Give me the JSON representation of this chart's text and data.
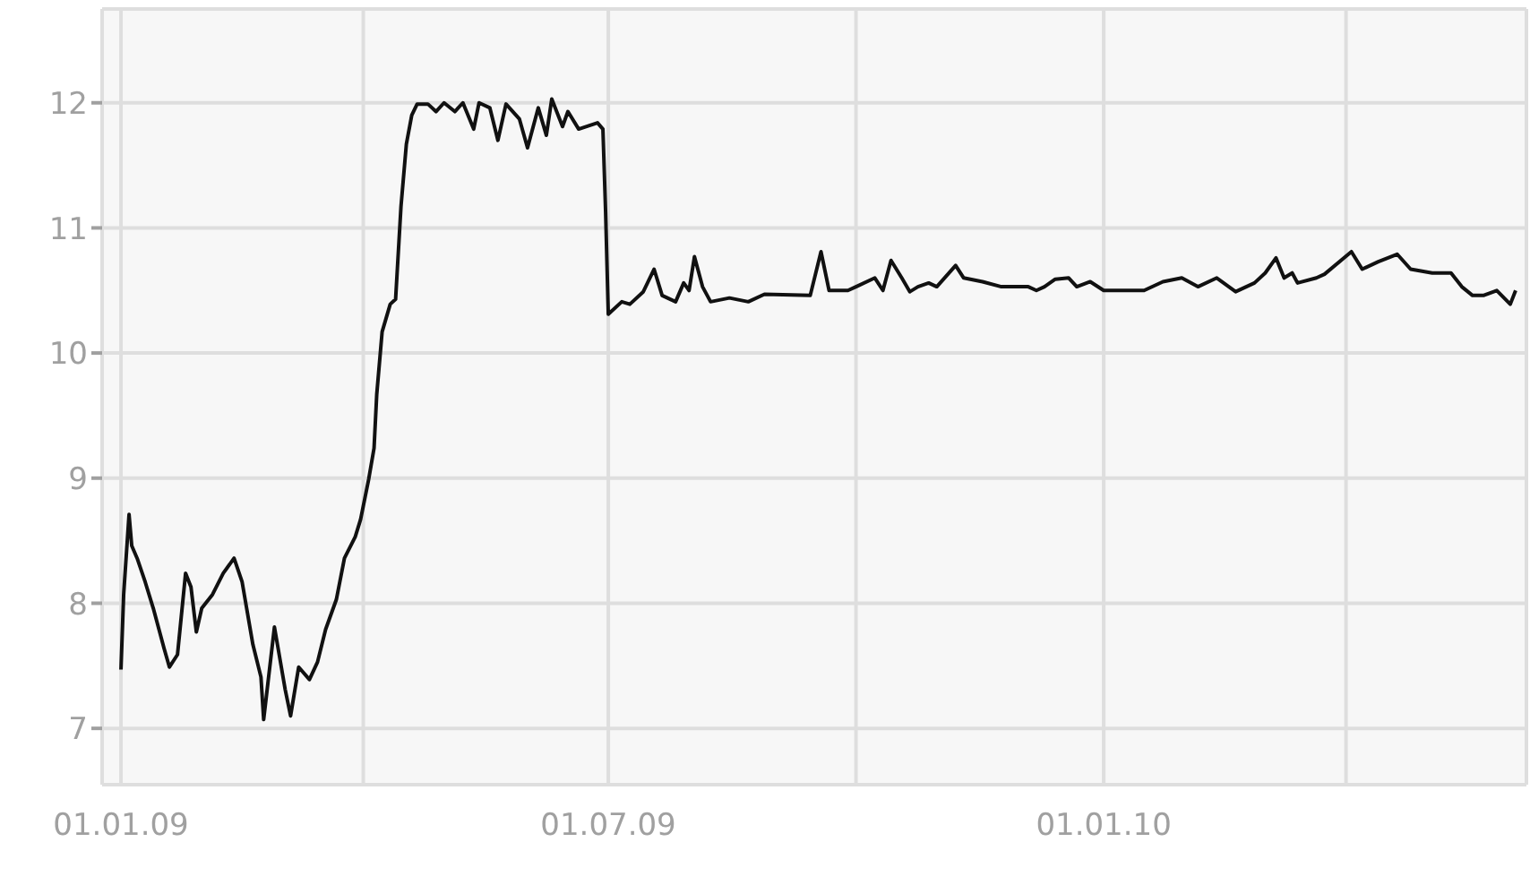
{
  "chart_data": {
    "type": "line",
    "x": [
      "2009-01-01",
      "2009-01-02",
      "2009-01-04",
      "2009-01-05",
      "2009-01-07",
      "2009-01-10",
      "2009-01-13",
      "2009-01-17",
      "2009-01-19",
      "2009-01-22",
      "2009-01-25",
      "2009-01-27",
      "2009-01-29",
      "2009-01-31",
      "2009-02-04",
      "2009-02-08",
      "2009-02-12",
      "2009-02-15",
      "2009-02-19",
      "2009-02-22",
      "2009-02-23",
      "2009-02-27",
      "2009-03-03",
      "2009-03-05",
      "2009-03-08",
      "2009-03-12",
      "2009-03-15",
      "2009-03-18",
      "2009-03-22",
      "2009-03-25",
      "2009-03-29",
      "2009-03-31",
      "2009-04-03",
      "2009-04-05",
      "2009-04-06",
      "2009-04-08",
      "2009-04-11",
      "2009-04-13",
      "2009-04-15",
      "2009-04-17",
      "2009-04-19",
      "2009-04-21",
      "2009-04-25",
      "2009-04-28",
      "2009-05-01",
      "2009-05-05",
      "2009-05-08",
      "2009-05-12",
      "2009-05-14",
      "2009-05-18",
      "2009-05-21",
      "2009-05-24",
      "2009-05-29",
      "2009-06-01",
      "2009-06-05",
      "2009-06-08",
      "2009-06-10",
      "2009-06-14",
      "2009-06-16",
      "2009-06-20",
      "2009-06-27",
      "2009-06-29",
      "2009-06-30",
      "2009-07-01",
      "2009-07-06",
      "2009-07-09",
      "2009-07-14",
      "2009-07-18",
      "2009-07-21",
      "2009-07-26",
      "2009-07-29",
      "2009-07-31",
      "2009-08-02",
      "2009-08-05",
      "2009-08-08",
      "2009-08-15",
      "2009-08-22",
      "2009-08-28",
      "2009-09-14",
      "2009-09-18",
      "2009-09-21",
      "2009-09-28",
      "2009-10-01",
      "2009-10-08",
      "2009-10-11",
      "2009-10-14",
      "2009-10-18",
      "2009-10-21",
      "2009-10-24",
      "2009-10-28",
      "2009-10-31",
      "2009-11-07",
      "2009-11-10",
      "2009-11-17",
      "2009-11-24",
      "2009-12-04",
      "2009-12-07",
      "2009-12-10",
      "2009-12-14",
      "2009-12-19",
      "2009-12-22",
      "2009-12-27",
      "2010-01-01",
      "2010-01-16",
      "2010-01-23",
      "2010-01-30",
      "2010-02-05",
      "2010-02-12",
      "2010-02-19",
      "2010-02-26",
      "2010-03-02",
      "2010-03-06",
      "2010-03-09",
      "2010-03-12",
      "2010-03-14",
      "2010-03-21",
      "2010-03-24",
      "2010-04-03",
      "2010-04-07",
      "2010-04-13",
      "2010-04-20",
      "2010-04-25",
      "2010-05-03",
      "2010-05-10",
      "2010-05-14",
      "2010-05-18",
      "2010-05-22",
      "2010-05-27",
      "2010-06-01",
      "2010-06-03"
    ],
    "series": [
      {
        "color": "#111111",
        "values": [
          7.47,
          8.07,
          8.71,
          8.46,
          8.36,
          8.17,
          7.96,
          7.64,
          7.49,
          7.59,
          8.24,
          8.13,
          7.77,
          7.96,
          8.07,
          8.24,
          8.36,
          8.17,
          7.67,
          7.41,
          7.07,
          7.81,
          7.31,
          7.1,
          7.49,
          7.39,
          7.53,
          7.79,
          8.03,
          8.36,
          8.53,
          8.67,
          8.99,
          9.24,
          9.67,
          10.17,
          10.39,
          10.43,
          11.17,
          11.67,
          11.9,
          11.99,
          11.99,
          11.93,
          12.0,
          11.93,
          12.0,
          11.79,
          12.0,
          11.96,
          11.7,
          11.99,
          11.87,
          11.64,
          11.96,
          11.74,
          12.03,
          11.81,
          11.93,
          11.79,
          11.84,
          11.79,
          11.13,
          10.31,
          10.41,
          10.39,
          10.49,
          10.67,
          10.46,
          10.41,
          10.56,
          10.5,
          10.77,
          10.53,
          10.41,
          10.44,
          10.41,
          10.47,
          10.46,
          10.81,
          10.5,
          10.5,
          10.53,
          10.6,
          10.5,
          10.74,
          10.6,
          10.49,
          10.53,
          10.56,
          10.53,
          10.7,
          10.6,
          10.57,
          10.53,
          10.53,
          10.5,
          10.53,
          10.59,
          10.6,
          10.53,
          10.57,
          10.5,
          10.5,
          10.57,
          10.6,
          10.53,
          10.6,
          10.49,
          10.56,
          10.64,
          10.76,
          10.6,
          10.64,
          10.56,
          10.6,
          10.63,
          10.81,
          10.67,
          10.73,
          10.79,
          10.67,
          10.64,
          10.64,
          10.53,
          10.46,
          10.46,
          10.5,
          10.39,
          10.5
        ]
      }
    ],
    "xlim": [
      "2008-12-25",
      "2010-06-07"
    ],
    "xticks": [
      {
        "value": "2009-01-01",
        "label": "01.01.09"
      },
      {
        "value": "2009-04-01",
        "label": null
      },
      {
        "value": "2009-07-01",
        "label": "01.07.09"
      },
      {
        "value": "2009-10-01",
        "label": null
      },
      {
        "value": "2010-01-01",
        "label": "01.01.10"
      },
      {
        "value": "2010-04-01",
        "label": null
      }
    ],
    "ylim": [
      6.55,
      12.75
    ],
    "yticks": [
      7,
      8,
      9,
      10,
      11,
      12
    ],
    "grid": true,
    "legend": false,
    "marker": "none",
    "line_style": "solid"
  }
}
